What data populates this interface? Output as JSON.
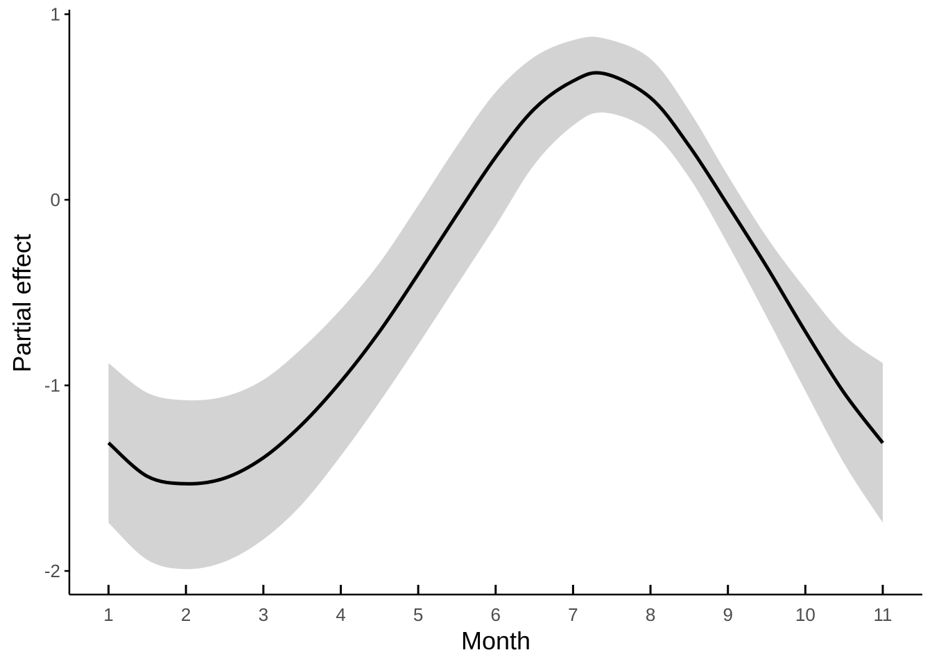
{
  "chart_data": {
    "type": "line",
    "title": "",
    "xlabel": "Month",
    "ylabel": "Partial effect",
    "xlim": [
      0.5,
      11.5
    ],
    "ylim": [
      -2.13,
      1.02
    ],
    "x_ticks": [
      "1",
      "2",
      "3",
      "4",
      "5",
      "6",
      "7",
      "8",
      "9",
      "10",
      "11"
    ],
    "y_ticks": [
      "-2",
      "-1",
      "0",
      "1"
    ],
    "grid": false,
    "legend": "none",
    "colors": {
      "line": "#000000",
      "band": "#d3d3d3",
      "axis": "#000000"
    },
    "series": [
      {
        "x": [
          1.0,
          1.5,
          2.0,
          2.5,
          3.0,
          3.5,
          4.0,
          4.5,
          5.0,
          5.5,
          6.0,
          6.5,
          7.0,
          7.4,
          8.0,
          8.5,
          9.0,
          9.5,
          10.0,
          10.5,
          11.0
        ],
        "y": [
          -1.31,
          -1.49,
          -1.53,
          -1.5,
          -1.39,
          -1.21,
          -0.98,
          -0.71,
          -0.4,
          -0.08,
          0.23,
          0.49,
          0.64,
          0.68,
          0.55,
          0.29,
          -0.03,
          -0.36,
          -0.71,
          -1.04,
          -1.31
        ],
        "lower": [
          -1.74,
          -1.94,
          -1.99,
          -1.95,
          -1.83,
          -1.64,
          -1.38,
          -1.09,
          -0.78,
          -0.46,
          -0.14,
          0.19,
          0.4,
          0.47,
          0.37,
          0.12,
          -0.24,
          -0.63,
          -1.03,
          -1.42,
          -1.74
        ],
        "upper": [
          -0.88,
          -1.04,
          -1.08,
          -1.06,
          -0.97,
          -0.8,
          -0.59,
          -0.34,
          -0.03,
          0.29,
          0.58,
          0.77,
          0.86,
          0.87,
          0.76,
          0.48,
          0.13,
          -0.2,
          -0.48,
          -0.73,
          -0.88
        ]
      }
    ]
  }
}
